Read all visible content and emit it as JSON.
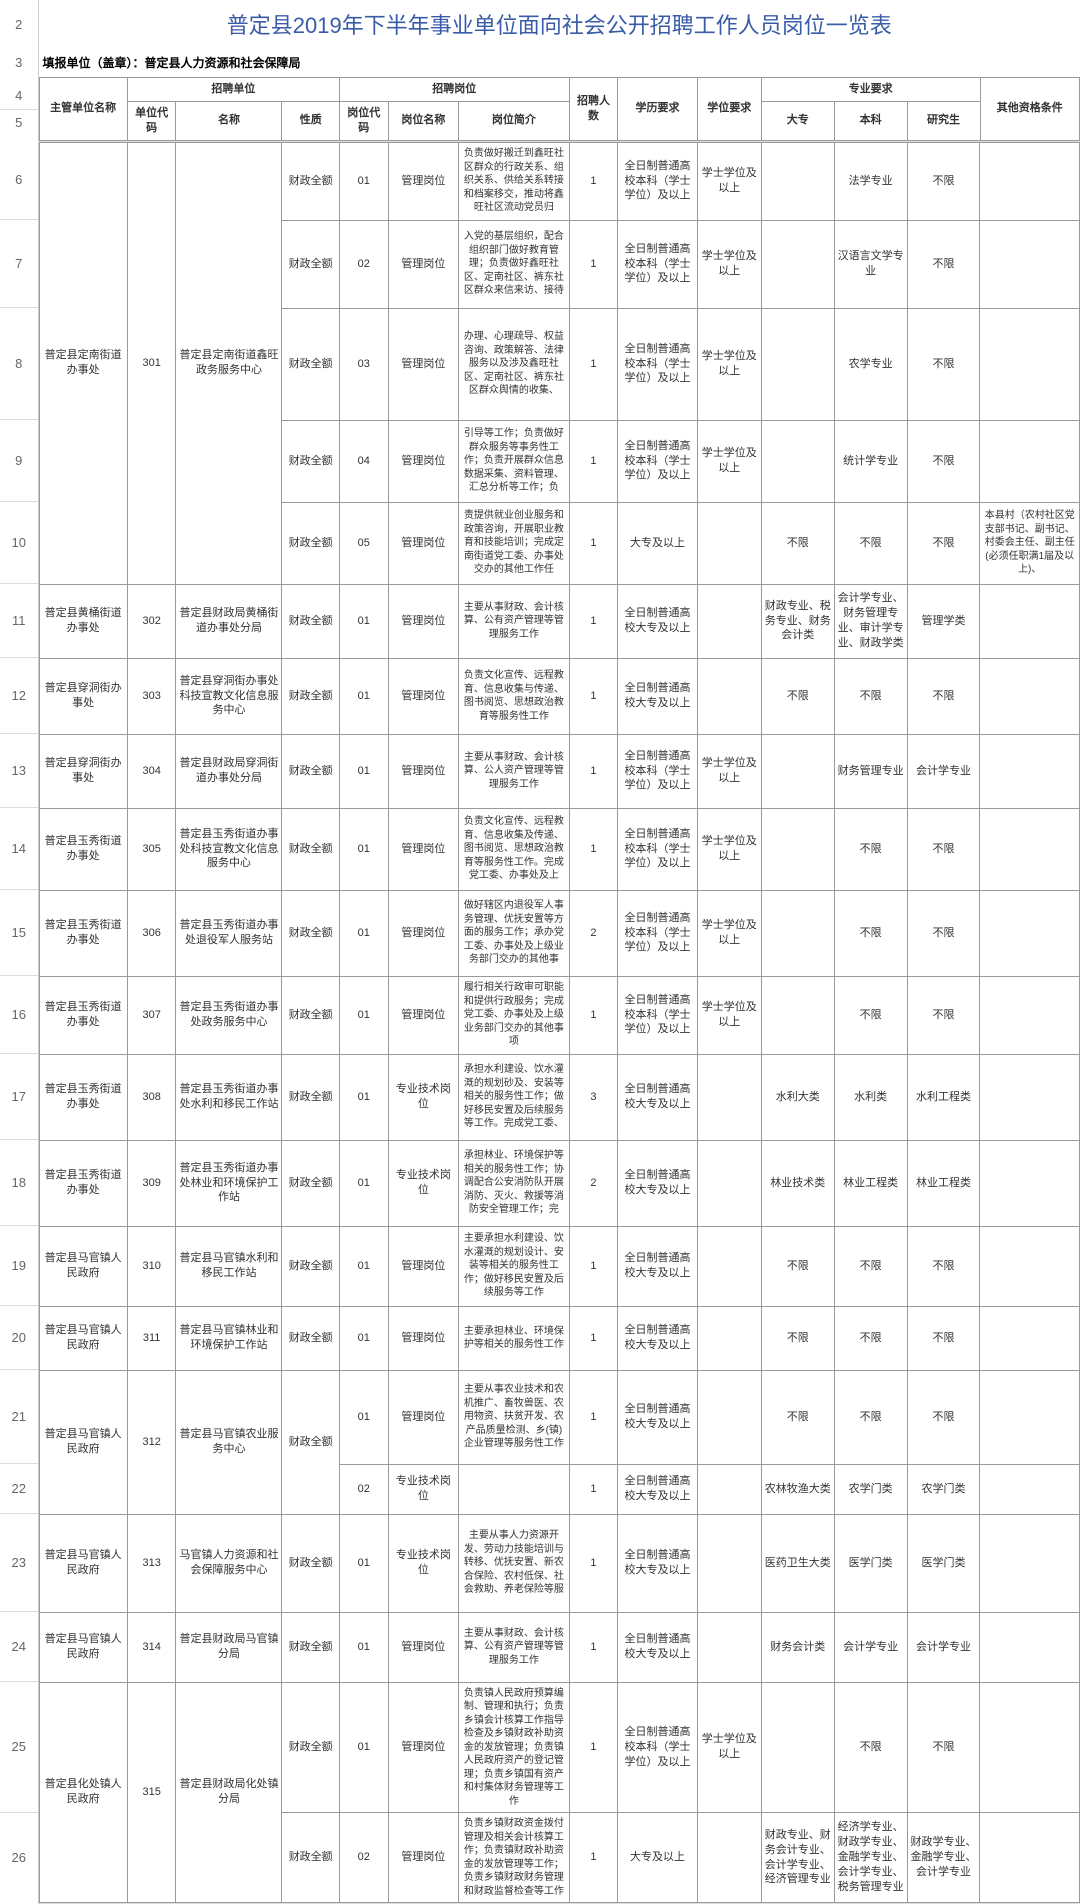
{
  "title": "普定县2019年下半年事业单位面向社会公开招聘工作人员岗位一览表",
  "filler": "填报单位（盖章）：普定县人力资源和社会保障局",
  "row_numbers": [
    "2",
    "3",
    "4",
    "5",
    "6",
    "7",
    "8",
    "9",
    "10",
    "11",
    "12",
    "13",
    "14",
    "15",
    "16",
    "17",
    "18",
    "19",
    "20",
    "21",
    "22",
    "23",
    "24",
    "25",
    "26"
  ],
  "headers": {
    "org": "主管单位名称",
    "recruit_unit": "招聘单位",
    "recruit_post": "招聘岗位",
    "unit_code": "单位代码",
    "unit_name": "名称",
    "unit_nature": "性质",
    "post_code": "岗位代码",
    "post_name": "岗位名称",
    "post_desc": "岗位简介",
    "count": "招聘人数",
    "edu": "学历要求",
    "degree": "学位要求",
    "major": "专业要求",
    "dz": "大专",
    "bk": "本科",
    "yjs": "研究生",
    "other": "其他资格条件"
  },
  "rows": [
    {
      "org": "普定县定南街道办事处",
      "code": "301",
      "unit": "普定县定南街道鑫旺政务服务中心",
      "nature": "财政全额",
      "pcode": "01",
      "pname": "管理岗位",
      "desc": "负责做好搬迁到鑫旺社区群众的行政关系、组织关系、供给关系转接和档案移交，推动将鑫旺社区流动党员归",
      "count": "1",
      "edu": "全日制普通高校本科（学士学位）及以上",
      "degree": "学士学位及以上",
      "dz": "",
      "bk": "法学专业",
      "yjs": "不限",
      "other": ""
    },
    {
      "nature": "财政全额",
      "pcode": "02",
      "pname": "管理岗位",
      "desc": "入党的基层组织，配合组织部门做好教育管理；负责做好鑫旺社区、定南社区、裤东社区群众来信来访、接待",
      "count": "1",
      "edu": "全日制普通高校本科（学士学位）及以上",
      "degree": "学士学位及以上",
      "dz": "",
      "bk": "汉语言文学专业",
      "yjs": "不限",
      "other": ""
    },
    {
      "nature": "财政全额",
      "pcode": "03",
      "pname": "管理岗位",
      "desc": "办理、心理疏导、权益咨询、政策解答、法律服务以及涉及鑫旺社区、定南社区、裤东社区群众舆情的收集、",
      "count": "1",
      "edu": "全日制普通高校本科（学士学位）及以上",
      "degree": "学士学位及以上",
      "dz": "",
      "bk": "农学专业",
      "yjs": "不限",
      "other": ""
    },
    {
      "nature": "财政全额",
      "pcode": "04",
      "pname": "管理岗位",
      "desc": "引导等工作；负责做好群众服务等事务性工作；负责开展群众信息数据采集、资料管理、汇总分析等工作；负",
      "count": "1",
      "edu": "全日制普通高校本科（学士学位）及以上",
      "degree": "学士学位及以上",
      "dz": "",
      "bk": "统计学专业",
      "yjs": "不限",
      "other": ""
    },
    {
      "nature": "财政全额",
      "pcode": "05",
      "pname": "管理岗位",
      "desc": "责提供就业创业服务和政策咨询，开展职业教育和技能培训；完成定南街道党工委、办事处交办的其他工作任",
      "count": "1",
      "edu": "大专及以上",
      "degree": "",
      "dz": "不限",
      "bk": "不限",
      "yjs": "不限",
      "other": "本县村（农村社区党支部书记、副书记、村委会主任、副主任(必须任职满1届及以上)、"
    },
    {
      "org": "普定县黄桶街道办事处",
      "code": "302",
      "unit": "普定县财政局黄桶街道办事处分局",
      "nature": "财政全额",
      "pcode": "01",
      "pname": "管理岗位",
      "desc": "主要从事财政、会计核算、公有资产管理等管理服务工作",
      "count": "1",
      "edu": "全日制普通高校大专及以上",
      "degree": "",
      "dz": "财政专业、税务专业、财务会计类",
      "bk": "会计学专业、财务管理专业、审计学专业、财政学类",
      "yjs": "管理学类",
      "other": ""
    },
    {
      "org": "普定县穿洞街办事处",
      "code": "303",
      "unit": "普定县穿洞街办事处科技宣教文化信息服务中心",
      "nature": "财政全额",
      "pcode": "01",
      "pname": "管理岗位",
      "desc": "负责文化宣传、远程教育、信息收集与传递、图书阅览、思想政治教育等服务性工作",
      "count": "1",
      "edu": "全日制普通高校大专及以上",
      "degree": "",
      "dz": "不限",
      "bk": "不限",
      "yjs": "不限",
      "other": ""
    },
    {
      "org": "普定县穿洞街办事处",
      "code": "304",
      "unit": "普定县财政局穿洞街道办事处分局",
      "nature": "财政全额",
      "pcode": "01",
      "pname": "管理岗位",
      "desc": "主要从事财政、会计核算、公人资产管理等管理服务工作",
      "count": "1",
      "edu": "全日制普通高校本科（学士学位）及以上",
      "degree": "学士学位及以上",
      "dz": "",
      "bk": "财务管理专业",
      "yjs": "会计学专业",
      "other": ""
    },
    {
      "org": "普定县玉秀街道办事处",
      "code": "305",
      "unit": "普定县玉秀街道办事处科技宣教文化信息服务中心",
      "nature": "财政全额",
      "pcode": "01",
      "pname": "管理岗位",
      "desc": "负责文化宣传、远程教育、信息收集及传递、图书阅览、思想政治教育等服务性工作。完成党工委、办事处及上",
      "count": "1",
      "edu": "全日制普通高校本科（学士学位）及以上",
      "degree": "学士学位及以上",
      "dz": "",
      "bk": "不限",
      "yjs": "不限",
      "other": ""
    },
    {
      "org": "普定县玉秀街道办事处",
      "code": "306",
      "unit": "普定县玉秀街道办事处退役军人服务站",
      "nature": "财政全额",
      "pcode": "01",
      "pname": "管理岗位",
      "desc": "做好辖区内退役军人事务管理、优抚安置等方面的服务工作；承办党工委、办事处及上级业务部门交办的其他事",
      "count": "2",
      "edu": "全日制普通高校本科（学士学位）及以上",
      "degree": "学士学位及以上",
      "dz": "",
      "bk": "不限",
      "yjs": "不限",
      "other": ""
    },
    {
      "org": "普定县玉秀街道办事处",
      "code": "307",
      "unit": "普定县玉秀街道办事处政务服务中心",
      "nature": "财政全额",
      "pcode": "01",
      "pname": "管理岗位",
      "desc": "履行相关行政审可职能和提供行政服务；完成党工委、办事处及上级业务部门交办的其他事项",
      "count": "1",
      "edu": "全日制普通高校本科（学士学位）及以上",
      "degree": "学士学位及以上",
      "dz": "",
      "bk": "不限",
      "yjs": "不限",
      "other": ""
    },
    {
      "org": "普定县玉秀街道办事处",
      "code": "308",
      "unit": "普定县玉秀街道办事处水利和移民工作站",
      "nature": "财政全额",
      "pcode": "01",
      "pname": "专业技术岗位",
      "desc": "承担水利建设、饮水灌溉的规划砂及、安装等相关的服务性工作；做好移民安置及后续服务等工作。完成党工委、",
      "count": "3",
      "edu": "全日制普通高校大专及以上",
      "degree": "",
      "dz": "水利大类",
      "bk": "水利类",
      "yjs": "水利工程类",
      "other": ""
    },
    {
      "org": "普定县玉秀街道办事处",
      "code": "309",
      "unit": "普定县玉秀街道办事处林业和环境保护工作站",
      "nature": "财政全额",
      "pcode": "01",
      "pname": "专业技术岗位",
      "desc": "承担林业、环境保护等相关的服务性工作；协调配合公安消防队开展消防、灭火、救援等消防安全管理工作；完",
      "count": "2",
      "edu": "全日制普通高校大专及以上",
      "degree": "",
      "dz": "林业技术类",
      "bk": "林业工程类",
      "yjs": "林业工程类",
      "other": ""
    },
    {
      "org": "普定县马官镇人民政府",
      "code": "310",
      "unit": "普定县马官镇水利和移民工作站",
      "nature": "财政全额",
      "pcode": "01",
      "pname": "管理岗位",
      "desc": "主要承担水利建设、饮水灌溉的规划设计、安装等相关的服务性工作；做好移民安置及后续服务等工作",
      "count": "1",
      "edu": "全日制普通高校大专及以上",
      "degree": "",
      "dz": "不限",
      "bk": "不限",
      "yjs": "不限",
      "other": ""
    },
    {
      "org": "普定县马官镇人民政府",
      "code": "311",
      "unit": "普定县马官镇林业和环境保护工作站",
      "nature": "财政全额",
      "pcode": "01",
      "pname": "管理岗位",
      "desc": "主要承担林业、环境保护等相关的服务性工作",
      "count": "1",
      "edu": "全日制普通高校大专及以上",
      "degree": "",
      "dz": "不限",
      "bk": "不限",
      "yjs": "不限",
      "other": ""
    },
    {
      "org": "普定县马官镇人民政府",
      "code": "312",
      "unit": "普定县马官镇农业服务中心",
      "nature": "财政全额",
      "pcode": "01",
      "pname": "管理岗位",
      "desc": "主要从事农业技术和农机推广、畜牧兽医、农用物资、扶贫开发、农产品质量检测、乡(镇)企业管理等服务性工作",
      "count": "1",
      "edu": "全日制普通高校大专及以上",
      "degree": "",
      "dz": "不限",
      "bk": "不限",
      "yjs": "不限",
      "other": ""
    },
    {
      "pcode": "02",
      "pname": "专业技术岗位",
      "desc": "",
      "count": "1",
      "edu": "全日制普通高校大专及以上",
      "degree": "",
      "dz": "农林牧渔大类",
      "bk": "农学门类",
      "yjs": "农学门类",
      "other": ""
    },
    {
      "org": "普定县马官镇人民政府",
      "code": "313",
      "unit": "马官镇人力资源和社会保障服务中心",
      "nature": "财政全额",
      "pcode": "01",
      "pname": "专业技术岗位",
      "desc": "主要从事人力资源开发、劳动力技能培训与转移、优抚安置、新农合保险、农村低保、社会救助、养老保险等服",
      "count": "1",
      "edu": "全日制普通高校大专及以上",
      "degree": "",
      "dz": "医药卫生大类",
      "bk": "医学门类",
      "yjs": "医学门类",
      "other": ""
    },
    {
      "org": "普定县马官镇人民政府",
      "code": "314",
      "unit": "普定县财政局马官镇分局",
      "nature": "财政全额",
      "pcode": "01",
      "pname": "管理岗位",
      "desc": "主要从事财政、会计核算、公有资产管理等管理服务工作",
      "count": "1",
      "edu": "全日制普通高校大专及以上",
      "degree": "",
      "dz": "财务会计类",
      "bk": "会计学专业",
      "yjs": "会计学专业",
      "other": ""
    },
    {
      "org": "普定县化处镇人民政府",
      "code": "315",
      "unit": "普定县财政局化处镇分局",
      "nature": "财政全额",
      "pcode": "01",
      "pname": "管理岗位",
      "desc": "负责镇人民政府预算编制、管理和执行；负责乡镇会计核算工作指导检查及乡镇财政补助资金的发放管理；负责镇人民政府资产的登记管理；负责乡镇国有资产和村集体财务管理等工作",
      "count": "1",
      "edu": "全日制普通高校本科（学士学位）及以上",
      "degree": "学士学位及以上",
      "dz": "",
      "bk": "不限",
      "yjs": "不限",
      "other": ""
    },
    {
      "nature": "财政全额",
      "pcode": "02",
      "pname": "管理岗位",
      "desc": "负责乡镇财政资金拨付管理及相关会计核算工作；负责镇财政补助资金的发放管理等工作；负责乡镇财政财务管理和财政监督检查等工作",
      "count": "1",
      "edu": "大专及以上",
      "degree": "",
      "dz": "财政专业、财务会计专业、会计学专业、经济管理专业",
      "bk": "经济学专业、财政学专业、金融学专业、会计学专业、税务管理专业",
      "yjs": "财政学专业、金融学专业、会计学专业",
      "other": ""
    }
  ]
}
